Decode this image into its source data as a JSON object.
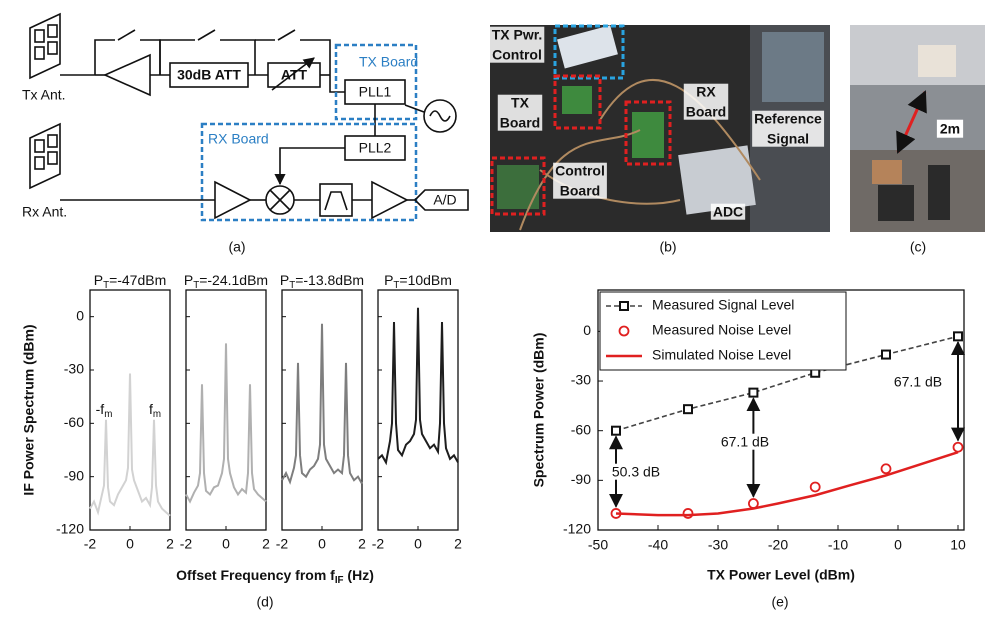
{
  "diagram": {
    "tx_antenna": "Tx Ant.",
    "rx_antenna": "Rx Ant.",
    "attenuator_fixed": "30dB ATT",
    "attenuator_var": "ATT",
    "tx_board": "TX Board",
    "rx_board": "RX Board",
    "pll1": "PLL1",
    "pll2": "PLL2",
    "adc": "A/D"
  },
  "photo_setup": {
    "labels": [
      [
        "TX Pwr.",
        "Control"
      ],
      [
        "TX",
        "Board"
      ],
      [
        "RX",
        "Board"
      ],
      [
        "Control",
        "Board"
      ],
      [
        "Reference",
        "Signal"
      ],
      [
        "ADC"
      ]
    ]
  },
  "photo_range": {
    "distance": "2m"
  },
  "captions": [
    "(a)",
    "(b)",
    "(c)",
    "(d)",
    "(e)"
  ],
  "chart_data": [
    {
      "type": "line",
      "title": {
        "symbol": "P",
        "subscript": "T",
        "text": "=-47dBm"
      },
      "ylabel": "IF Power Spectrum (dBm)",
      "xlabel": {
        "text": "Offset Frequency from ",
        "symbol": "f",
        "subscript": "IF",
        "unit": " (Hz)"
      },
      "annotations": [
        {
          "symbol": "-f",
          "subscript": "m"
        },
        {
          "symbol": "f",
          "subscript": "m"
        }
      ],
      "x": [
        -2,
        -1.8,
        -1.6,
        -1.4,
        -1.3,
        -1.2,
        -1.1,
        -1.0,
        -0.8,
        -0.6,
        -0.4,
        -0.2,
        -0.1,
        0,
        0.1,
        0.2,
        0.4,
        0.6,
        0.8,
        1.0,
        1.1,
        1.2,
        1.3,
        1.4,
        1.6,
        1.8,
        2
      ],
      "series": [
        {
          "color": "#d2d2d2",
          "values": [
            -108,
            -104,
            -110,
            -100,
            -95,
            -58,
            -96,
            -104,
            -106,
            -100,
            -96,
            -92,
            -85,
            -32,
            -86,
            -92,
            -98,
            -104,
            -102,
            -106,
            -96,
            -58,
            -95,
            -104,
            -108,
            -110,
            -112
          ]
        }
      ],
      "xlim": [
        -2,
        2
      ],
      "xticks": [
        -2,
        0,
        2
      ],
      "ylim": [
        -120,
        15
      ],
      "yticks": [
        0,
        -30,
        -60,
        -90,
        -120
      ]
    },
    {
      "type": "line",
      "title": {
        "symbol": "P",
        "subscript": "T",
        "text": "=-24.1dBm"
      },
      "x": [
        -2,
        -1.8,
        -1.6,
        -1.4,
        -1.3,
        -1.2,
        -1.1,
        -1.0,
        -0.8,
        -0.6,
        -0.4,
        -0.2,
        -0.1,
        0,
        0.1,
        0.2,
        0.4,
        0.6,
        0.8,
        1.0,
        1.1,
        1.2,
        1.3,
        1.4,
        1.6,
        1.8,
        2
      ],
      "series": [
        {
          "color": "#b0b0b0",
          "values": [
            -100,
            -104,
            -99,
            -95,
            -88,
            -38,
            -88,
            -98,
            -100,
            -96,
            -95,
            -88,
            -80,
            -15,
            -80,
            -88,
            -96,
            -100,
            -97,
            -99,
            -88,
            -38,
            -88,
            -97,
            -100,
            -102,
            -104
          ]
        }
      ],
      "xlim": [
        -2,
        2
      ],
      "xticks": [
        -2,
        0,
        2
      ],
      "ylim": [
        -120,
        15
      ],
      "yticks": [
        0,
        -30,
        -60,
        -90,
        -120
      ]
    },
    {
      "type": "line",
      "title": {
        "symbol": "P",
        "subscript": "T",
        "text": "=-13.8dBm"
      },
      "x": [
        -2,
        -1.8,
        -1.6,
        -1.4,
        -1.3,
        -1.2,
        -1.1,
        -1.0,
        -0.8,
        -0.6,
        -0.4,
        -0.2,
        -0.1,
        0,
        0.1,
        0.2,
        0.4,
        0.6,
        0.8,
        1.0,
        1.1,
        1.2,
        1.3,
        1.4,
        1.6,
        1.8,
        2
      ],
      "series": [
        {
          "color": "#7e7e7e",
          "values": [
            -92,
            -88,
            -93,
            -85,
            -78,
            -26,
            -78,
            -88,
            -90,
            -86,
            -84,
            -80,
            -72,
            -4,
            -72,
            -80,
            -84,
            -88,
            -86,
            -88,
            -78,
            -26,
            -78,
            -88,
            -92,
            -90,
            -94
          ]
        }
      ],
      "xlim": [
        -2,
        2
      ],
      "xticks": [
        -2,
        0,
        2
      ],
      "ylim": [
        -120,
        15
      ],
      "yticks": [
        0,
        -30,
        -60,
        -90,
        -120
      ]
    },
    {
      "type": "line",
      "title": {
        "symbol": "P",
        "subscript": "T",
        "text": "=10dBm"
      },
      "x": [
        -2,
        -1.8,
        -1.6,
        -1.4,
        -1.3,
        -1.2,
        -1.1,
        -1.0,
        -0.8,
        -0.6,
        -0.4,
        -0.2,
        -0.1,
        0,
        0.1,
        0.2,
        0.4,
        0.6,
        0.8,
        1.0,
        1.1,
        1.2,
        1.3,
        1.4,
        1.6,
        1.8,
        2
      ],
      "series": [
        {
          "color": "#1e1e1e",
          "values": [
            -80,
            -78,
            -82,
            -70,
            -60,
            -3,
            -60,
            -75,
            -78,
            -72,
            -70,
            -66,
            -58,
            5,
            -58,
            -66,
            -70,
            -74,
            -72,
            -76,
            -60,
            -3,
            -60,
            -74,
            -80,
            -78,
            -82
          ]
        }
      ],
      "xlim": [
        -2,
        2
      ],
      "xticks": [
        -2,
        0,
        2
      ],
      "ylim": [
        -120,
        15
      ],
      "yticks": [
        0,
        -30,
        -60,
        -90,
        -120
      ]
    },
    {
      "type": "line",
      "xlabel": "TX Power Level (dBm)",
      "ylabel": "Spectrum Power (dBm)",
      "legend": "upper left",
      "xlim": [
        -50,
        11
      ],
      "xticks": [
        -50,
        -40,
        -30,
        -20,
        -10,
        0,
        10
      ],
      "ylim": [
        -120,
        25
      ],
      "yticks": [
        0,
        -30,
        -60,
        -90,
        -120
      ],
      "series": [
        {
          "name": "Measured Signal Level",
          "color": "#444444",
          "line": "dashed",
          "marker": "square",
          "x": [
            -47,
            -35,
            -24.1,
            -13.8,
            -2,
            10
          ],
          "values": [
            -60,
            -47,
            -37,
            -25,
            -14,
            -3
          ]
        },
        {
          "name": "Measured Noise Level",
          "color": "#e02020",
          "marker": "circle",
          "x": [
            -47,
            -35,
            -24.1,
            -13.8,
            -2,
            10
          ],
          "values": [
            -110,
            -110,
            -104,
            -94,
            -83,
            -70
          ]
        },
        {
          "name": "Simulated Noise Level",
          "color": "#e02020",
          "line": "solid",
          "x": [
            -47,
            -40,
            -35,
            -30,
            -24.1,
            -20,
            -13.8,
            -8,
            -2,
            4,
            10
          ],
          "values": [
            -110,
            -111,
            -111,
            -110,
            -107,
            -104,
            -99,
            -93,
            -87,
            -80,
            -73
          ]
        }
      ],
      "annotations": [
        "50.3 dB",
        "67.1 dB",
        "67.1 dB"
      ]
    }
  ]
}
